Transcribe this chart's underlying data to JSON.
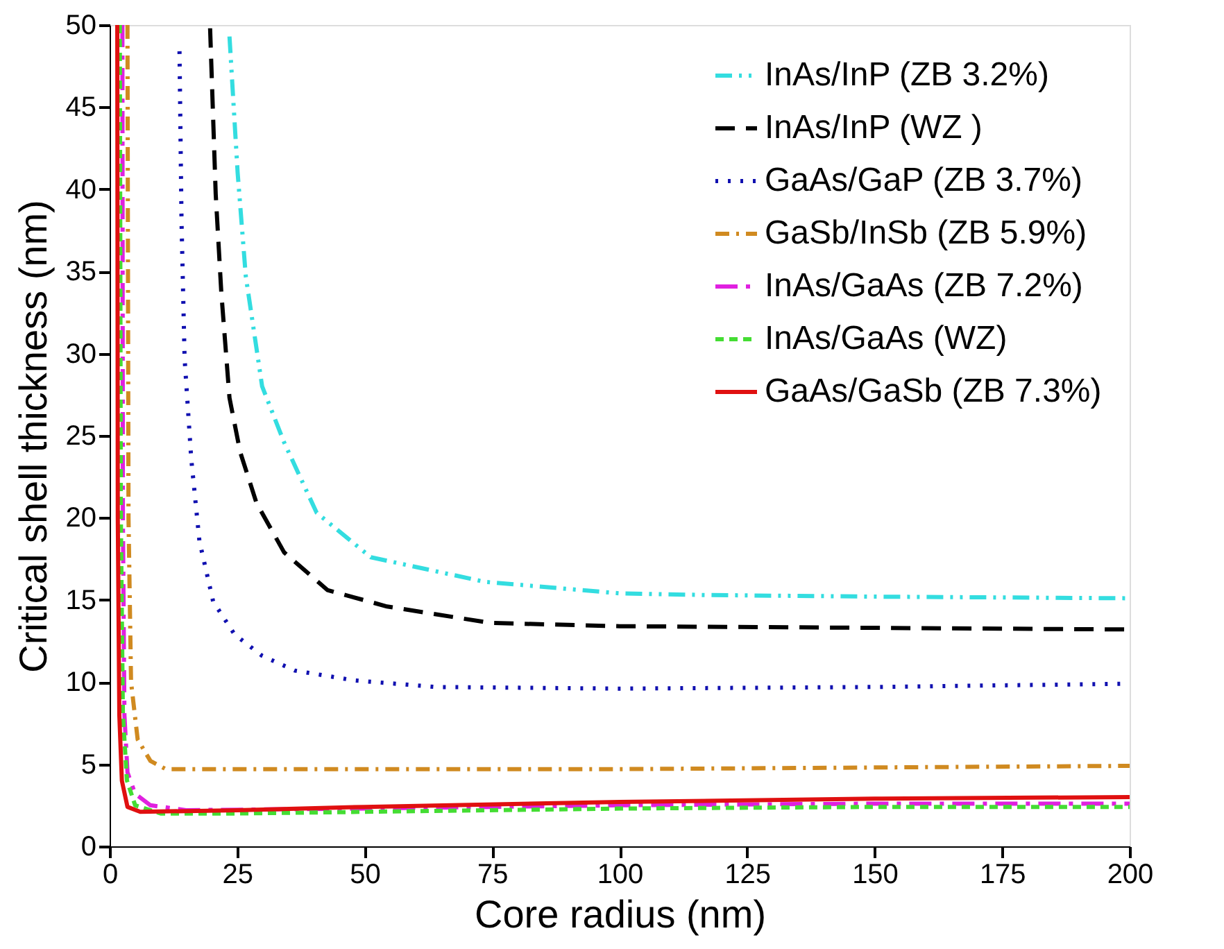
{
  "chart_data": {
    "type": "line",
    "xlabel": "Core radius (nm)",
    "ylabel": "Critical shell thickness (nm)",
    "xlim": [
      0,
      200
    ],
    "ylim": [
      0,
      50
    ],
    "xticks": [
      0,
      25,
      50,
      75,
      100,
      125,
      150,
      175,
      200
    ],
    "yticks": [
      0,
      5,
      10,
      15,
      20,
      25,
      30,
      35,
      40,
      45,
      50
    ],
    "grid": false,
    "legend": "top right",
    "marker": "none",
    "series": [
      {
        "name": "InAs/InP (ZB 3.2%)",
        "color": "#33dde0",
        "line_style": "dashdotdot",
        "x": [
          23.5,
          25.1,
          26.7,
          29.9,
          34.2,
          40.6,
          51.2,
          73.6,
          100,
          116.6,
          150,
          200
        ],
        "values": [
          49.3,
          41,
          34.7,
          28,
          24.6,
          20.3,
          17.6,
          16.1,
          15.4,
          15.3,
          15.2,
          15.1
        ]
      },
      {
        "name": "InAs/InP (WZ )",
        "color": "#000000",
        "line_style": "dashed",
        "x": [
          19.7,
          20.8,
          21.9,
          23.5,
          25.6,
          28.8,
          34.2,
          42.7,
          54.4,
          74.7,
          100,
          150,
          200
        ],
        "values": [
          49.8,
          39.7,
          33.7,
          27.3,
          24,
          20.9,
          17.9,
          15.6,
          14.6,
          13.6,
          13.4,
          13.3,
          13.2
        ]
      },
      {
        "name": "GaAs/GaP (ZB 3.7%)",
        "color": "#1010b0",
        "line_style": "dotted",
        "x": [
          13.7,
          14.1,
          14.7,
          16,
          17.6,
          20.3,
          24.5,
          29.9,
          36.3,
          48,
          64,
          100,
          150,
          200
        ],
        "values": [
          48.4,
          38,
          29.7,
          23.6,
          18.6,
          14.9,
          12.9,
          11.6,
          10.7,
          10.1,
          9.7,
          9.6,
          9.7,
          9.9
        ]
      },
      {
        "name": "GaSb/InSb (ZB 5.9%)",
        "color": "#d08a20",
        "line_style": "dashdot",
        "x": [
          3.5,
          3.7,
          4.2,
          5.5,
          8,
          11,
          50,
          100,
          150,
          200
        ],
        "values": [
          50,
          20,
          10,
          6.5,
          5.2,
          4.7,
          4.7,
          4.7,
          4.8,
          4.9
        ]
      },
      {
        "name": "InAs/GaAs (ZB 7.2%)",
        "color": "#e020e0",
        "line_style": "longdashdot",
        "x": [
          2.5,
          2.6,
          2.9,
          3.5,
          5,
          8,
          15,
          50,
          100,
          150,
          200
        ],
        "values": [
          50,
          20,
          8,
          4.5,
          3.2,
          2.5,
          2.2,
          2.3,
          2.5,
          2.6,
          2.6
        ]
      },
      {
        "name": "InAs/GaAs (WZ)",
        "color": "#44dd33",
        "line_style": "shortdashed",
        "x": [
          2.0,
          2.2,
          2.6,
          3.4,
          5,
          10,
          25,
          50,
          100,
          150,
          200
        ],
        "values": [
          50,
          20,
          8,
          4,
          2.5,
          2.0,
          2.0,
          2.1,
          2.3,
          2.4,
          2.4
        ]
      },
      {
        "name": "GaAs/GaSb (ZB 7.3%)",
        "color": "#e01010",
        "line_style": "solid",
        "x": [
          1.5,
          1.6,
          1.9,
          2.4,
          3.5,
          6,
          25,
          50,
          100,
          150,
          200
        ],
        "values": [
          50,
          20,
          8,
          4,
          2.4,
          2.1,
          2.2,
          2.4,
          2.7,
          2.9,
          3.0
        ]
      }
    ]
  }
}
